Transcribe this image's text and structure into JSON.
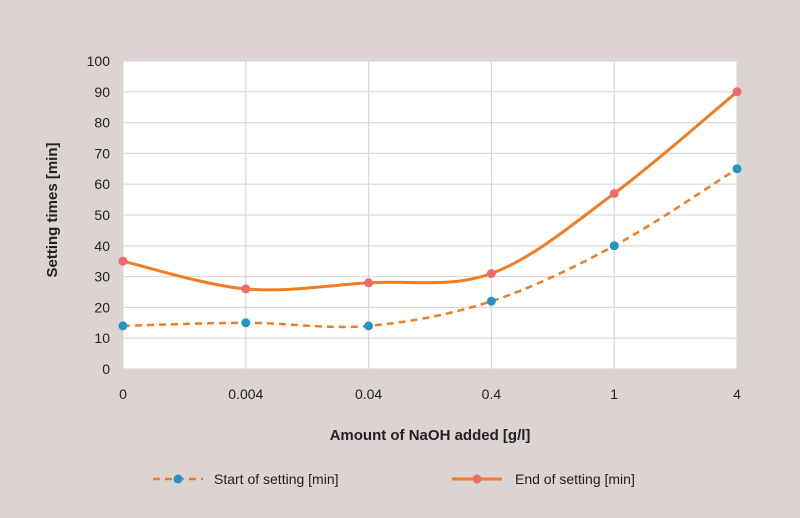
{
  "chart_data": {
    "type": "line",
    "title": "",
    "xlabel": "Amount of NaOH added [g/l]",
    "ylabel": "Setting times [min]",
    "categories": [
      "0",
      "0.004",
      "0.04",
      "0.4",
      "1",
      "4"
    ],
    "ylim": [
      0,
      100
    ],
    "yticks": [
      0,
      10,
      20,
      30,
      40,
      50,
      60,
      70,
      80,
      90,
      100
    ],
    "grid": true,
    "legend_position": "bottom",
    "series": [
      {
        "name": "Start of setting [min]",
        "values": [
          14,
          15,
          14,
          22,
          40,
          65
        ],
        "line_color": "#ee7d23",
        "marker_color": "#2196c6",
        "dashed": true
      },
      {
        "name": "End of setting [min]",
        "values": [
          35,
          26,
          28,
          31,
          57,
          90
        ],
        "line_color": "#ee7d23",
        "marker_color": "#f06a6a",
        "dashed": false
      }
    ]
  }
}
